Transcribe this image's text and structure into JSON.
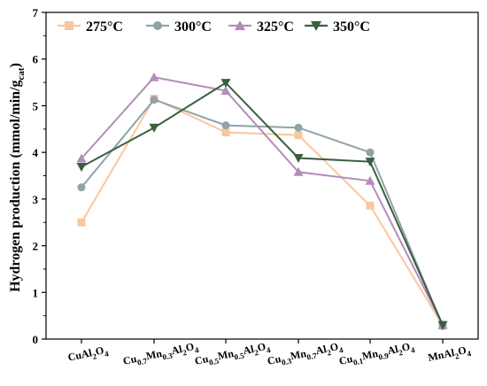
{
  "chart_data": {
    "type": "line",
    "categories": [
      {
        "main": "CuAl",
        "parts": [
          [
            "CuAl",
            ""
          ],
          [
            "2",
            "sub"
          ],
          [
            "O",
            ""
          ],
          [
            "4",
            "sub"
          ]
        ]
      },
      {
        "main": "Cu0.7Mn0.3Al2O4",
        "parts": [
          [
            "Cu",
            ""
          ],
          [
            "0.7",
            "sub"
          ],
          [
            "Mn",
            ""
          ],
          [
            "0.3",
            "sub"
          ],
          [
            "Al",
            ""
          ],
          [
            "2",
            "sub"
          ],
          [
            "O",
            ""
          ],
          [
            "4",
            "sub"
          ]
        ]
      },
      {
        "main": "Cu0.5Mn0.5Al2O4",
        "parts": [
          [
            "Cu",
            ""
          ],
          [
            "0.5",
            "sub"
          ],
          [
            "Mn",
            ""
          ],
          [
            "0.5",
            "sub"
          ],
          [
            "Al",
            ""
          ],
          [
            "2",
            "sub"
          ],
          [
            "O",
            ""
          ],
          [
            "4",
            "sub"
          ]
        ]
      },
      {
        "main": "Cu0.3Mn0.7Al2O4",
        "parts": [
          [
            "Cu",
            ""
          ],
          [
            "0.3",
            "sub"
          ],
          [
            "Mn",
            ""
          ],
          [
            "0.7",
            "sub"
          ],
          [
            "Al",
            ""
          ],
          [
            "2",
            "sub"
          ],
          [
            "O",
            ""
          ],
          [
            "4",
            "sub"
          ]
        ]
      },
      {
        "main": "Cu0.1Mn0.9Al2O4",
        "parts": [
          [
            "Cu",
            ""
          ],
          [
            "0.1",
            "sub"
          ],
          [
            "Mn",
            ""
          ],
          [
            "0.9",
            "sub"
          ],
          [
            "Al",
            ""
          ],
          [
            "2",
            "sub"
          ],
          [
            "O",
            ""
          ],
          [
            "4",
            "sub"
          ]
        ]
      },
      {
        "main": "MnAl2O4",
        "parts": [
          [
            "MnAl",
            ""
          ],
          [
            "2",
            "sub"
          ],
          [
            "O",
            ""
          ],
          [
            "4",
            "sub"
          ]
        ]
      }
    ],
    "series": [
      {
        "name": "275°C",
        "color": "#f9c79d",
        "marker": "square",
        "values": [
          2.5,
          5.15,
          4.43,
          4.37,
          2.86,
          0.29
        ]
      },
      {
        "name": "300°C",
        "color": "#8fa3a8",
        "marker": "circle",
        "values": [
          3.25,
          5.13,
          4.58,
          4.53,
          4.0,
          0.28
        ]
      },
      {
        "name": "325°C",
        "color": "#b48cba",
        "marker": "triangle-up",
        "values": [
          3.87,
          5.61,
          5.32,
          3.58,
          3.39,
          0.3
        ]
      },
      {
        "name": "350°C",
        "color": "#3a5f40",
        "marker": "triangle-down",
        "values": [
          3.69,
          4.53,
          5.49,
          3.88,
          3.8,
          0.3
        ]
      }
    ],
    "ylabel": {
      "parts": [
        [
          "Hydrogen production (mmol/min/g",
          ""
        ],
        [
          "cat",
          "sub"
        ],
        [
          ")",
          ""
        ]
      ]
    },
    "xlabel": "",
    "ylim": [
      0,
      7
    ],
    "yticks": [
      0,
      1,
      2,
      3,
      4,
      5,
      6,
      7
    ],
    "grid": false,
    "legend_position": "top"
  }
}
